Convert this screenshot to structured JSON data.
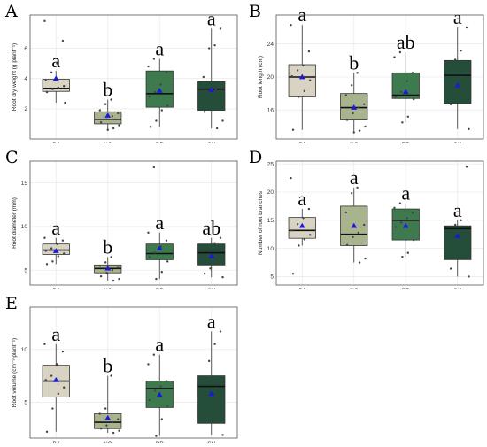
{
  "colors": {
    "BJ": "#d9d3c4",
    "NC": "#a9b48e",
    "RP": "#3d7a4e",
    "SH": "#244d3a",
    "mean_marker": "#1a1ad8",
    "point": "#444444",
    "panel_border": "#555555",
    "grid": "#ececec"
  },
  "chart_data": [
    {
      "type": "box",
      "panel_letter": "A",
      "ylabel": "Root dry weight (g plant⁻¹)",
      "ylim": [
        0,
        8.2
      ],
      "yticks": [
        2,
        4,
        6
      ],
      "categories": [
        "BJ",
        "NC",
        "RP",
        "SH"
      ],
      "boxes": [
        {
          "name": "BJ",
          "min": 2.4,
          "q1": 3.15,
          "median": 3.35,
          "q3": 3.95,
          "max": 4.5,
          "mean": 4.0,
          "sig": "a",
          "points": [
            7.8,
            6.5,
            5.0,
            4.4,
            3.9,
            3.5,
            3.4,
            3.3,
            3.1,
            2.4
          ]
        },
        {
          "name": "NC",
          "min": 0.6,
          "q1": 1.0,
          "median": 1.3,
          "q3": 1.8,
          "max": 2.6,
          "mean": 1.55,
          "sig": "b",
          "points": [
            2.6,
            2.3,
            1.9,
            1.7,
            1.5,
            1.3,
            1.1,
            0.9,
            0.7,
            0.6
          ]
        },
        {
          "name": "RP",
          "min": 0.8,
          "q1": 2.1,
          "median": 3.0,
          "q3": 4.5,
          "max": 5.3,
          "mean": 3.2,
          "sig": "a",
          "points": [
            5.3,
            4.8,
            4.4,
            3.6,
            3.1,
            2.8,
            2.2,
            1.9,
            1.2,
            0.8
          ]
        },
        {
          "name": "SH",
          "min": 0.7,
          "q1": 1.9,
          "median": 3.3,
          "q3": 3.8,
          "max": 7.3,
          "mean": 3.25,
          "sig": "a",
          "points": [
            7.3,
            6.2,
            6.0,
            4.1,
            3.5,
            3.3,
            2.9,
            1.8,
            1.2,
            0.7
          ]
        }
      ]
    },
    {
      "type": "box",
      "panel_letter": "B",
      "ylabel": "Root length (cm)",
      "ylim": [
        12.5,
        27.5
      ],
      "yticks": [
        16,
        20,
        24
      ],
      "categories": [
        "BJ",
        "NC",
        "RP",
        "SH"
      ],
      "boxes": [
        {
          "name": "BJ",
          "min": 13.6,
          "q1": 17.6,
          "median": 20.0,
          "q3": 21.5,
          "max": 26.3,
          "mean": 20.0,
          "sig": "a",
          "points": [
            26.3,
            23.1,
            21.4,
            20.8,
            20.1,
            19.6,
            18.3,
            17.6,
            13.6
          ]
        },
        {
          "name": "NC",
          "min": 13.3,
          "q1": 14.8,
          "median": 16.3,
          "q3": 18.0,
          "max": 20.5,
          "mean": 16.3,
          "sig": "b",
          "points": [
            20.5,
            19.0,
            17.8,
            16.7,
            16.3,
            15.6,
            14.8,
            14.0,
            13.5,
            13.3
          ]
        },
        {
          "name": "RP",
          "min": 14.5,
          "q1": 17.4,
          "median": 17.8,
          "q3": 20.5,
          "max": 23.0,
          "mean": 18.2,
          "sig": "ab",
          "points": [
            23.0,
            22.4,
            20.5,
            19.5,
            18.2,
            17.6,
            17.3,
            15.2,
            14.5
          ]
        },
        {
          "name": "SH",
          "min": 13.7,
          "q1": 16.8,
          "median": 20.2,
          "q3": 22.0,
          "max": 26.0,
          "mean": 19.0,
          "sig": "a",
          "points": [
            26.0,
            23.2,
            22.1,
            21.5,
            20.6,
            19.9,
            18.2,
            16.7,
            13.7
          ]
        }
      ]
    },
    {
      "type": "box",
      "panel_letter": "C",
      "ylabel": "Root diameter (mm)",
      "ylim": [
        3.3,
        17.5
      ],
      "yticks": [
        5,
        10,
        15
      ],
      "categories": [
        "BJ",
        "NC",
        "RP",
        "SH"
      ],
      "boxes": [
        {
          "name": "BJ",
          "min": 5.7,
          "q1": 6.8,
          "median": 7.3,
          "q3": 8.0,
          "max": 8.7,
          "mean": 7.2,
          "sig": "a",
          "points": [
            8.7,
            8.4,
            8.0,
            7.5,
            7.2,
            6.9,
            6.6,
            6.0,
            5.7
          ]
        },
        {
          "name": "NC",
          "min": 3.8,
          "q1": 4.7,
          "median": 5.2,
          "q3": 5.6,
          "max": 6.5,
          "mean": 5.2,
          "sig": "b",
          "points": [
            6.5,
            5.9,
            5.5,
            5.3,
            5.0,
            4.7,
            4.3,
            4.0,
            3.8
          ]
        },
        {
          "name": "RP",
          "min": 4.0,
          "q1": 6.2,
          "median": 6.9,
          "q3": 8.0,
          "max": 9.3,
          "mean": 7.5,
          "sig": "a",
          "points": [
            16.8,
            9.3,
            8.4,
            7.7,
            7.0,
            6.5,
            6.0,
            4.8,
            4.0
          ]
        },
        {
          "name": "SH",
          "min": 4.2,
          "q1": 5.6,
          "median": 7.0,
          "q3": 8.0,
          "max": 8.7,
          "mean": 6.6,
          "sig": "ab",
          "points": [
            8.7,
            8.1,
            7.7,
            7.2,
            6.5,
            5.9,
            5.2,
            4.6,
            4.2
          ]
        }
      ]
    },
    {
      "type": "box",
      "panel_letter": "D",
      "ylabel": "Number of root branches",
      "ylim": [
        3.5,
        25.5
      ],
      "yticks": [
        5,
        10,
        15,
        20,
        25
      ],
      "categories": [
        "BJ",
        "NC",
        "RP",
        "SH"
      ],
      "boxes": [
        {
          "name": "BJ",
          "min": 10.5,
          "q1": 11.8,
          "median": 13.2,
          "q3": 15.5,
          "max": 17.0,
          "mean": 14.0,
          "sig": "a",
          "points": [
            22.5,
            17.0,
            15.4,
            14.3,
            13.2,
            12.4,
            11.6,
            10.5,
            5.5
          ]
        },
        {
          "name": "NC",
          "min": 7.5,
          "q1": 10.5,
          "median": 12.5,
          "q3": 17.5,
          "max": 20.8,
          "mean": 14.0,
          "sig": "a",
          "points": [
            20.8,
            19.8,
            16.4,
            14.2,
            12.8,
            12.0,
            10.6,
            8.2,
            7.5
          ]
        },
        {
          "name": "RP",
          "min": 8.5,
          "q1": 11.5,
          "median": 15.0,
          "q3": 17.0,
          "max": 18.0,
          "mean": 14.0,
          "sig": "a",
          "points": [
            18.0,
            17.2,
            16.3,
            15.4,
            14.6,
            13.8,
            11.5,
            9.2,
            8.5
          ]
        },
        {
          "name": "SH",
          "min": 5.0,
          "q1": 8.0,
          "median": 13.5,
          "q3": 14.0,
          "max": 15.0,
          "mean": 12.2,
          "sig": "a",
          "points": [
            24.5,
            15.0,
            14.2,
            13.8,
            13.2,
            11.0,
            8.2,
            6.4,
            5.0
          ]
        }
      ]
    },
    {
      "type": "box",
      "panel_letter": "E",
      "ylabel": "Root volume (cm⁻³ plant⁻¹)",
      "ylim": [
        1.6,
        14.0
      ],
      "yticks": [
        5,
        10
      ],
      "categories": [
        "BJ",
        "NC",
        "RP",
        "SH"
      ],
      "boxes": [
        {
          "name": "BJ",
          "min": 2.2,
          "q1": 5.5,
          "median": 7.0,
          "q3": 8.5,
          "max": 10.5,
          "mean": 7.1,
          "sig": "a",
          "points": [
            10.5,
            9.8,
            8.6,
            7.5,
            7.1,
            6.4,
            5.8,
            4.4,
            2.2
          ]
        },
        {
          "name": "NC",
          "min": 2.1,
          "q1": 2.5,
          "median": 3.1,
          "q3": 3.9,
          "max": 7.5,
          "mean": 3.5,
          "sig": "b",
          "points": [
            7.5,
            4.4,
            3.9,
            3.4,
            3.1,
            2.8,
            2.5,
            2.3,
            2.1
          ]
        },
        {
          "name": "RP",
          "min": 1.8,
          "q1": 4.5,
          "median": 6.3,
          "q3": 7.0,
          "max": 9.5,
          "mean": 5.7,
          "sig": "a",
          "points": [
            9.5,
            8.6,
            7.0,
            6.5,
            6.1,
            5.2,
            4.6,
            3.4,
            1.8
          ]
        },
        {
          "name": "SH",
          "min": 1.9,
          "q1": 3.0,
          "median": 6.5,
          "q3": 7.5,
          "max": 11.7,
          "mean": 5.8,
          "sig": "a",
          "points": [
            11.7,
            10.5,
            8.9,
            7.4,
            6.7,
            6.3,
            5.5,
            3.2,
            1.9
          ]
        }
      ]
    }
  ]
}
